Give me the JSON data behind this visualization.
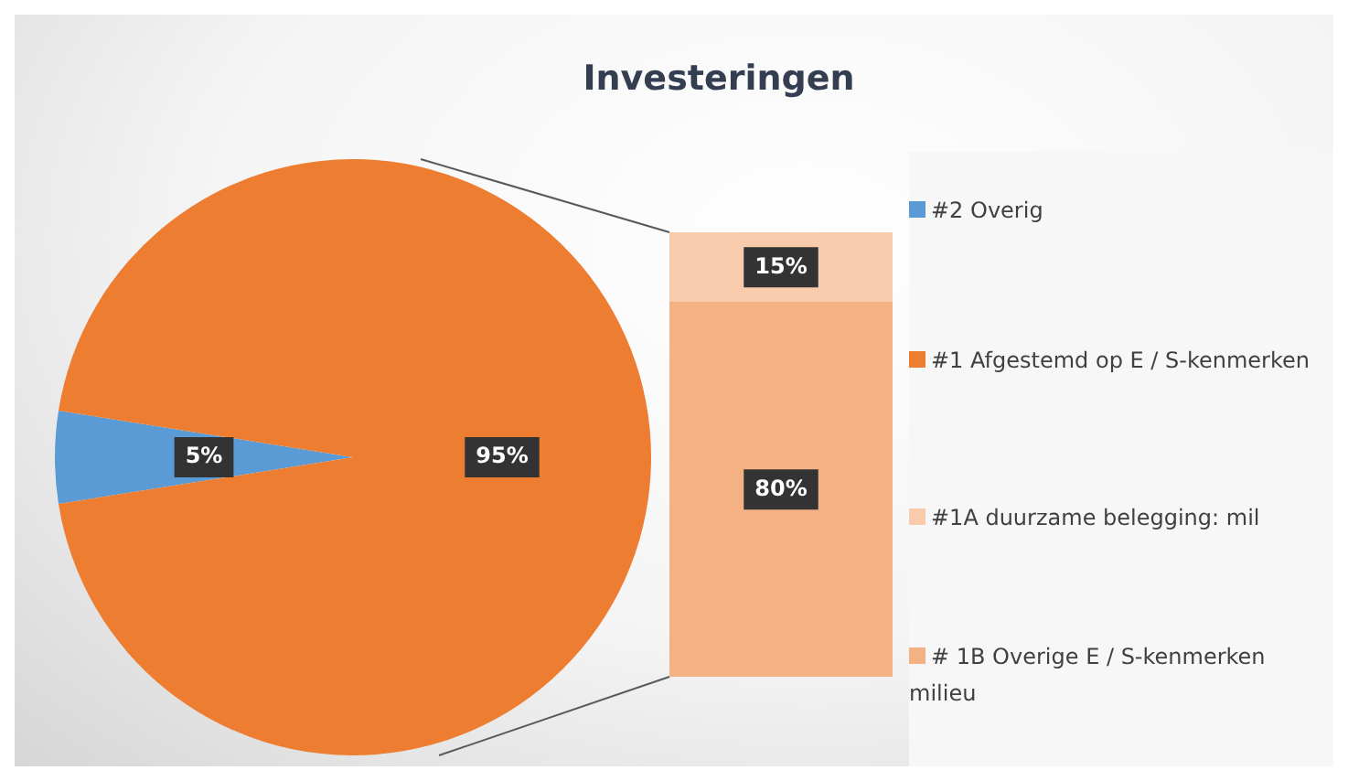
{
  "chart_data": [
    {
      "type": "pie",
      "title": "Investeringen",
      "categories": [
        "#2 Overig",
        "#1 Afgestemd op E / S-kenmerken"
      ],
      "values": [
        5,
        95
      ],
      "colors": [
        "#5b9bd5",
        "#ed7d31"
      ],
      "value_labels": [
        "5%",
        "95%"
      ],
      "legend": "right"
    },
    {
      "type": "bar",
      "stacked": true,
      "categories": [
        null
      ],
      "tick_labels": false,
      "legend": "right",
      "series": [
        {
          "name": "# 1B Overige E / S-kenmerken milieu",
          "color": "#f4b183",
          "values": [
            80
          ],
          "value_labels": [
            "80%"
          ]
        },
        {
          "name": "#1A duurzame belegging: mil",
          "color": "#f8cbad",
          "values": [
            15
          ],
          "value_labels": [
            "15%"
          ]
        }
      ]
    }
  ]
}
